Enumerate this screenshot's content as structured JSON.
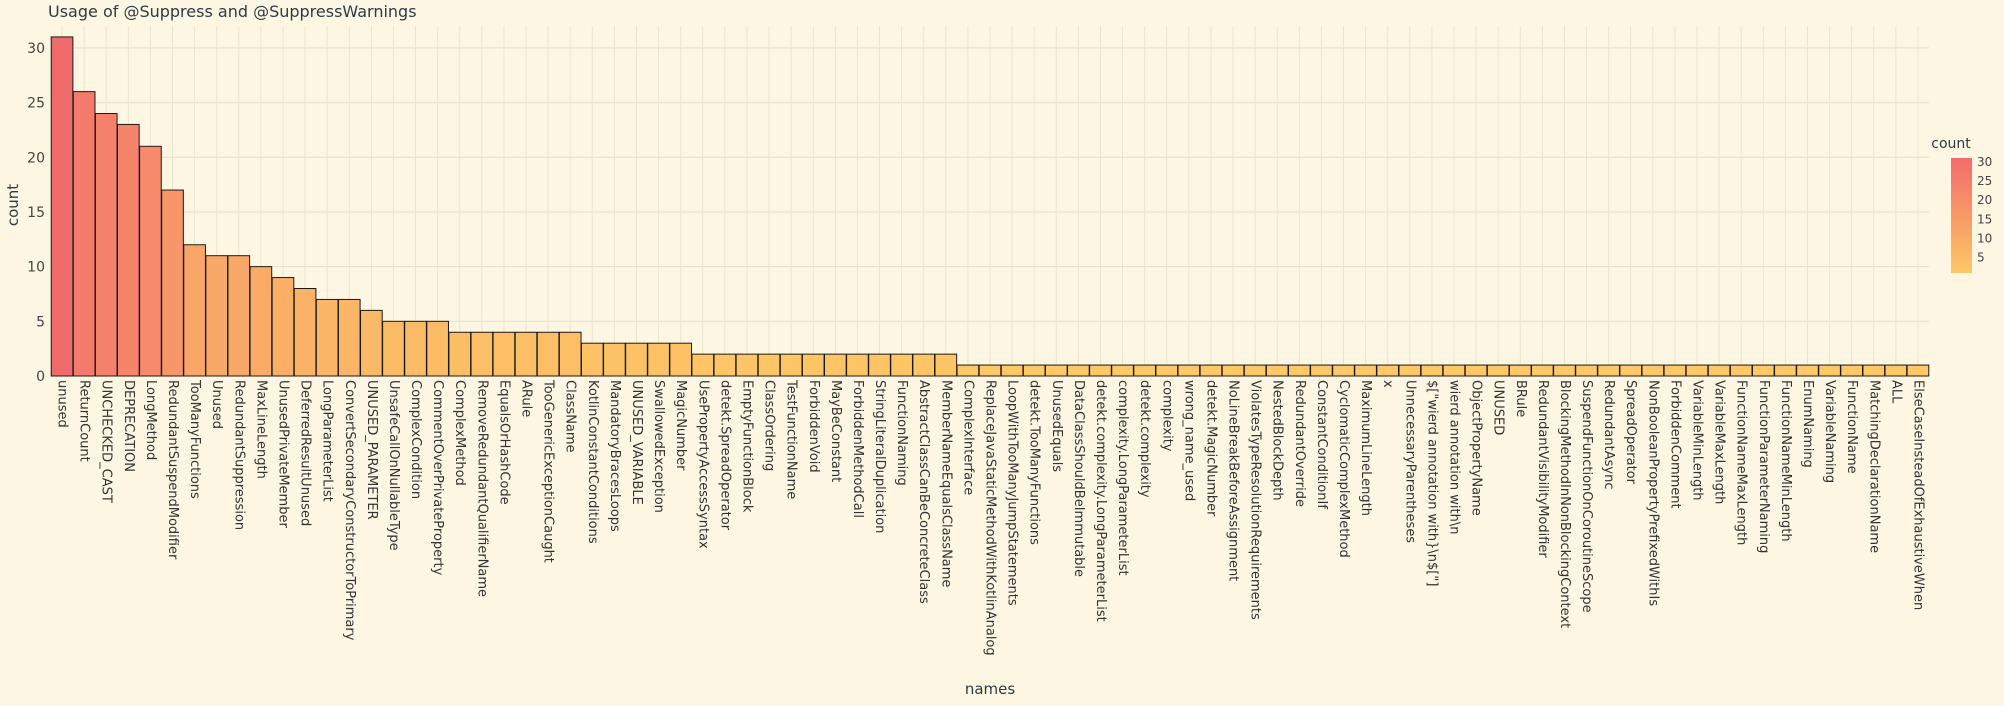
{
  "chart_data": {
    "type": "bar",
    "title": "Usage of @Suppress and @SuppressWarnings",
    "xlabel": "names",
    "ylabel": "count",
    "ylim": [
      0,
      32
    ],
    "yticks": [
      0,
      5,
      10,
      15,
      20,
      25,
      30
    ],
    "grid": true,
    "colorbar": {
      "title": "count",
      "ticks": [
        5,
        10,
        15,
        20,
        25,
        30
      ],
      "range": [
        1,
        31
      ],
      "low_color": "#fdc865",
      "high_color": "#f26b6c"
    },
    "categories": [
      "unused",
      "ReturnCount",
      "UNCHECKED_CAST",
      "DEPRECATION",
      "LongMethod",
      "RedundantSuspendModifier",
      "TooManyFunctions",
      "Unused",
      "RedundantSuppression",
      "MaxLineLength",
      "UnusedPrivateMember",
      "DeferredResultUnused",
      "LongParameterList",
      "ConvertSecondaryConstructorToPrimary",
      "UNUSED_PARAMETER",
      "UnsafeCallOnNullableType",
      "ComplexCondition",
      "CommentOverPrivateProperty",
      "ComplexMethod",
      "RemoveRedundantQualifierName",
      "EqualsOrHashCode",
      "ARule",
      "TooGenericExceptionCaught",
      "ClassName",
      "KotlinConstantConditions",
      "MandatoryBracesLoops",
      "UNUSED_VARIABLE",
      "SwallowedException",
      "MagicNumber",
      "UsePropertyAccessSyntax",
      "detekt.SpreadOperator",
      "EmptyFunctionBlock",
      "ClassOrdering",
      "TestFunctionName",
      "ForbiddenVoid",
      "MayBeConstant",
      "ForbiddenMethodCall",
      "StringLiteralDuplication",
      "FunctionNaming",
      "AbstractClassCanBeConcreteClass",
      "MemberNameEqualsClassName",
      "ComplexInterface",
      "ReplaceJavaStaticMethodWithKotlinAnalog",
      "LoopWithTooManyJumpStatements",
      "detekt.TooManyFunctions",
      "UnusedEquals",
      "DataClassShouldBeImmutable",
      "detekt.complexity.LongParameterList",
      "complexity.LongParameterList",
      "detekt.complexity",
      "complexity",
      "wrong_name_used",
      "detekt.MagicNumber",
      "NoLineBreakBeforeAssignment",
      "ViolatesTypeResolutionRequirements",
      "NestedBlockDepth",
      "RedundantOverride",
      "ConstantConditionIf",
      "CyclomaticComplexMethod",
      "MaximumLineLength",
      "x",
      "UnnecessaryParentheses",
      "$[\"wierd annotation with}\\n$[\"]",
      "wierd annotation with\\n",
      "ObjectPropertyName",
      "UNUSED",
      "BRule",
      "RedundantVisibilityModifier",
      "BlockingMethodInNonBlockingContext",
      "SuspendFunctionOnCoroutineScope",
      "RedundantAsync",
      "SpreadOperator",
      "NonBooleanPropertyPrefixedWithIs",
      "ForbiddenComment",
      "VariableMinLength",
      "VariableMaxLength",
      "FunctionNameMaxLength",
      "FunctionParameterNaming",
      "FunctionNameMinLength",
      "EnumNaming",
      "VariableNaming",
      "FunctionName",
      "MatchingDeclarationName",
      "ALL",
      "ElseCaseInsteadOfExhaustiveWhen"
    ],
    "values": [
      31,
      26,
      24,
      23,
      21,
      17,
      12,
      11,
      11,
      10,
      9,
      8,
      7,
      7,
      6,
      5,
      5,
      5,
      4,
      4,
      4,
      4,
      4,
      4,
      3,
      3,
      3,
      3,
      3,
      2,
      2,
      2,
      2,
      2,
      2,
      2,
      2,
      2,
      2,
      2,
      2,
      1,
      1,
      1,
      1,
      1,
      1,
      1,
      1,
      1,
      1,
      1,
      1,
      1,
      1,
      1,
      1,
      1,
      1,
      1,
      1,
      1,
      1,
      1,
      1,
      1,
      1,
      1,
      1,
      1,
      1,
      1,
      1,
      1,
      1,
      1,
      1,
      1,
      1,
      1,
      1,
      1,
      1,
      1,
      1
    ]
  }
}
